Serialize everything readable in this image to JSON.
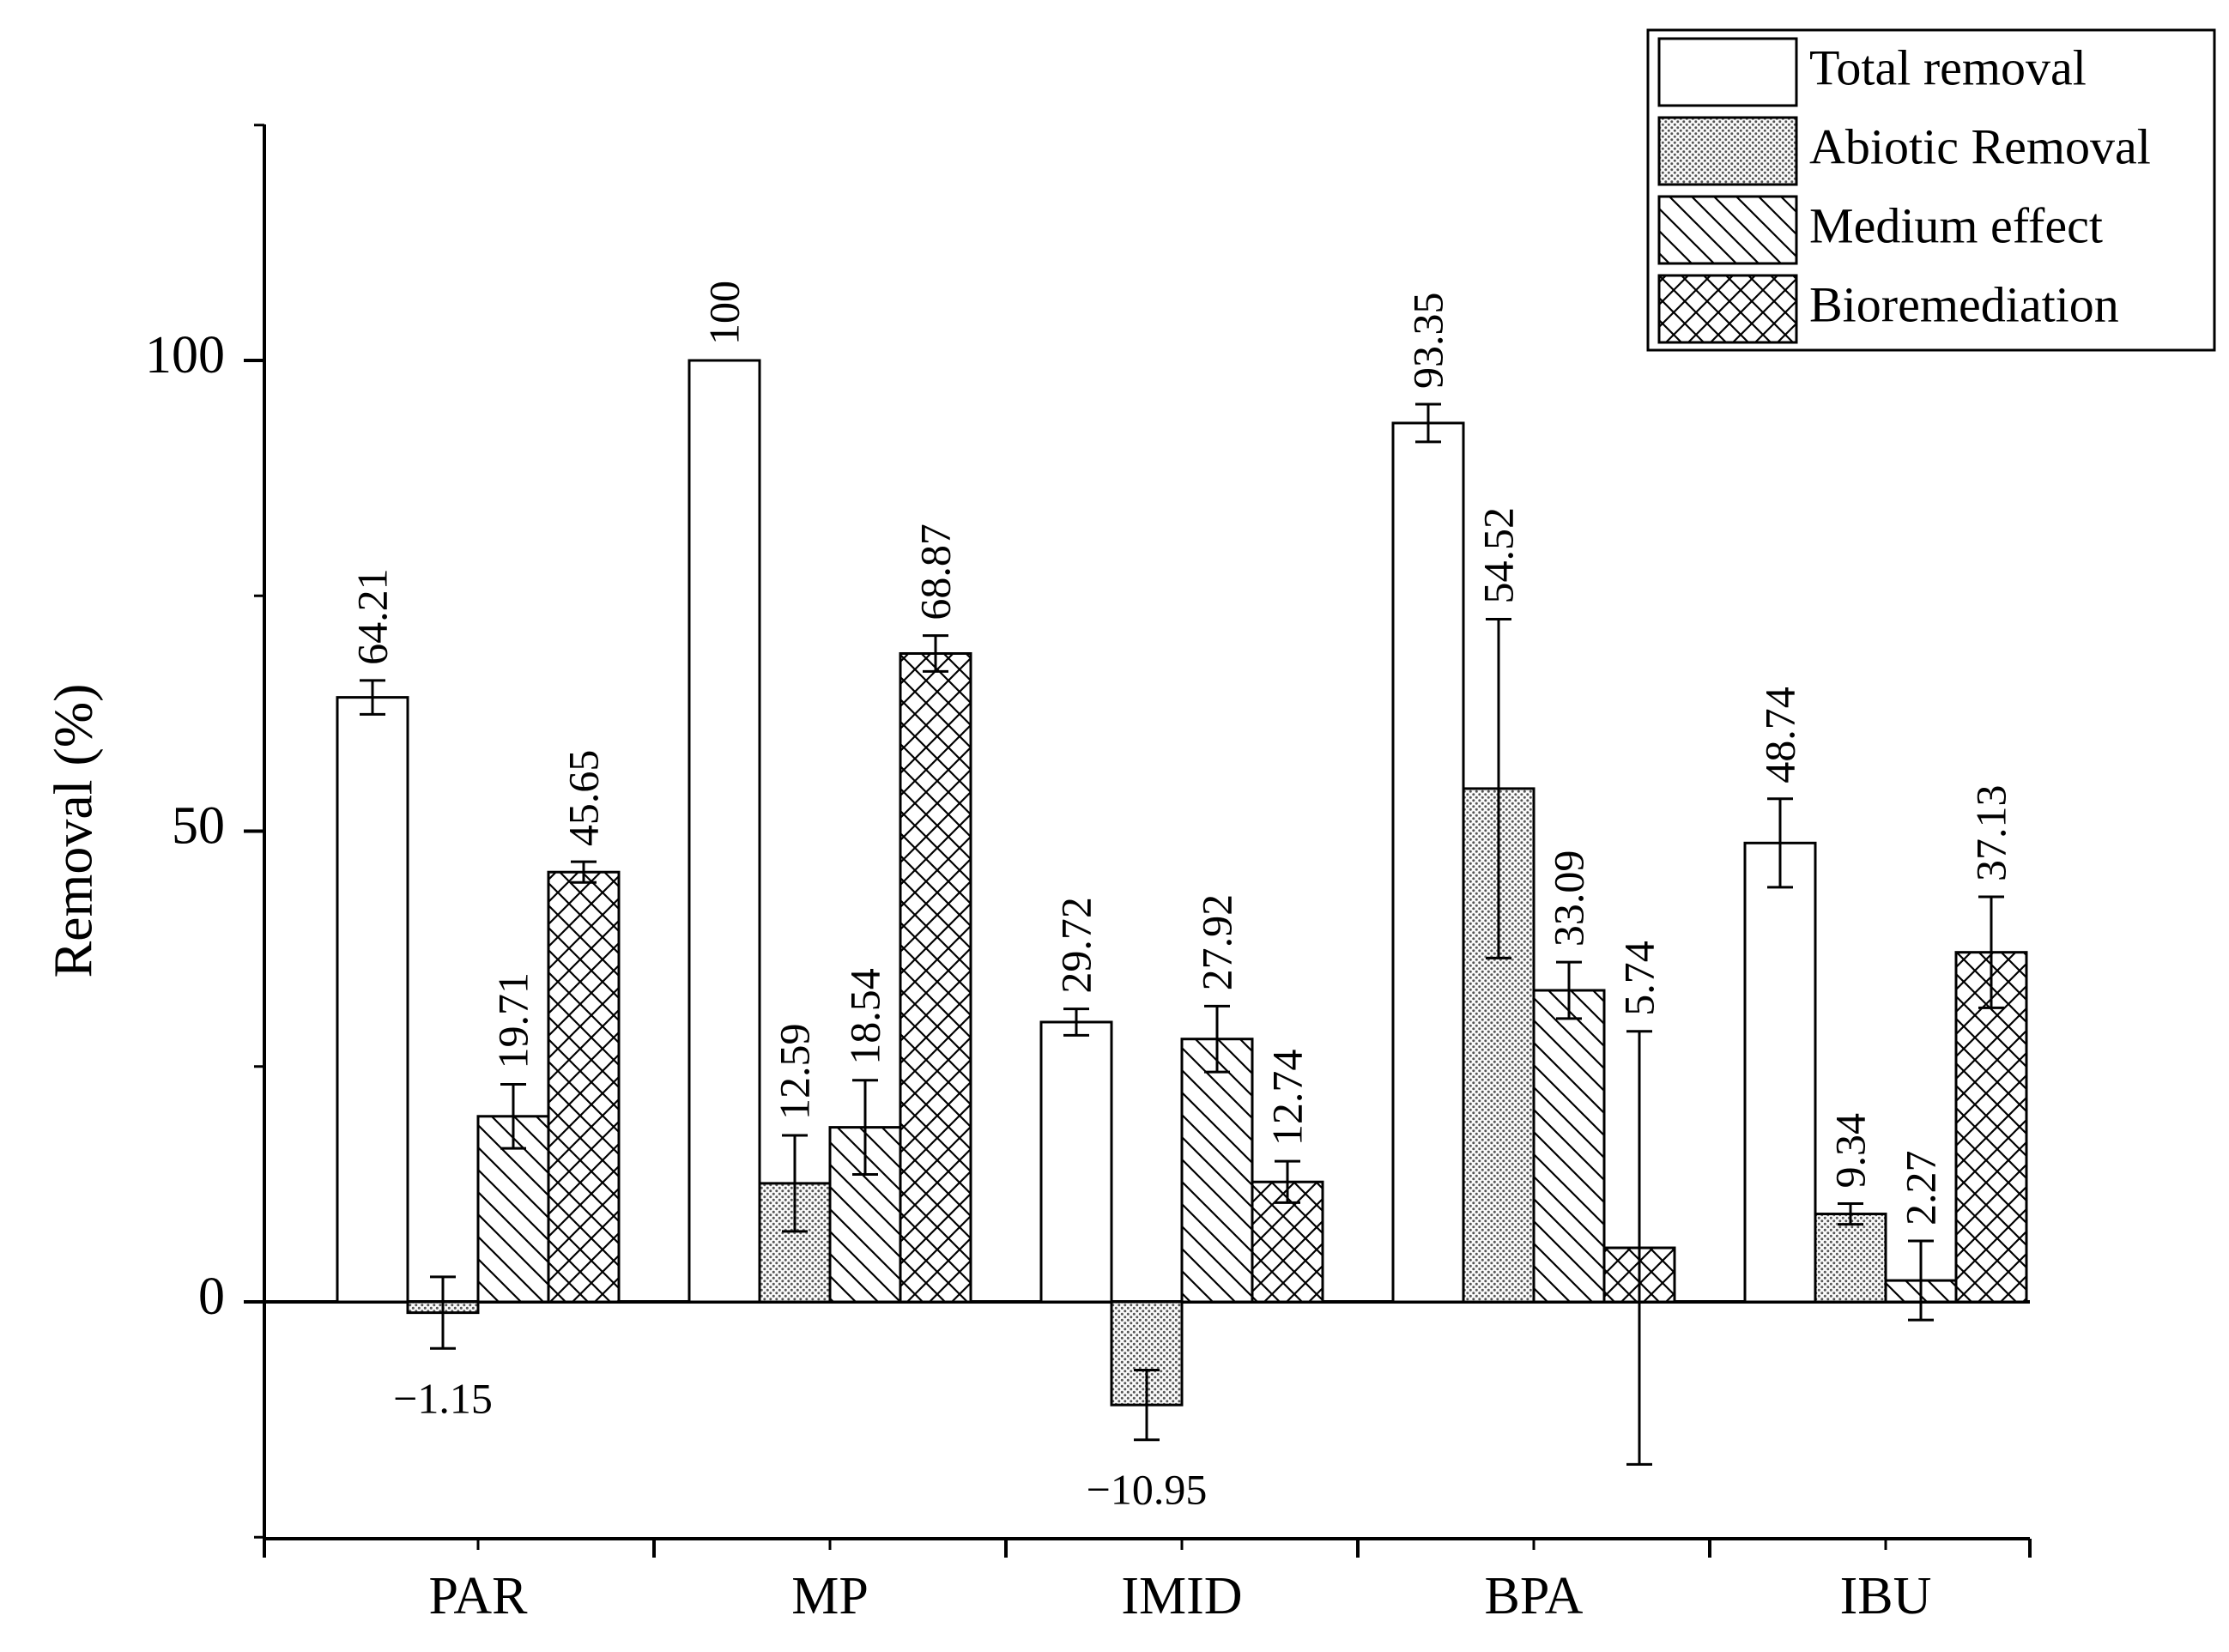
{
  "chart_data": {
    "type": "bar",
    "title": "",
    "xlabel": "",
    "ylabel": "Removal (%)",
    "ylim": [
      -25,
      125
    ],
    "yticks": [
      0,
      50,
      100
    ],
    "categories": [
      "PAR",
      "MP",
      "IMID",
      "BPA",
      "IBU"
    ],
    "series": [
      {
        "name": "Total removal",
        "pattern": "none",
        "values": [
          64.21,
          100,
          29.72,
          93.35,
          48.74
        ],
        "errors": [
          1.8,
          0,
          1.4,
          2.0,
          4.7
        ],
        "labels": [
          "64.21",
          "100",
          "29.72",
          "93.35",
          "48.74"
        ]
      },
      {
        "name": "Abiotic Removal",
        "pattern": "dots",
        "values": [
          -1.15,
          12.59,
          -10.95,
          54.52,
          9.34
        ],
        "errors": [
          3.8,
          5.1,
          3.7,
          18.0,
          1.1
        ],
        "labels": [
          "−1.15",
          "12.59",
          "−10.95",
          "54.52",
          "9.34"
        ]
      },
      {
        "name": "Medium effect",
        "pattern": "hatch",
        "values": [
          19.71,
          18.54,
          27.92,
          33.09,
          2.27
        ],
        "errors": [
          3.4,
          5.0,
          3.5,
          3.0,
          4.2
        ],
        "labels": [
          "19.71",
          "18.54",
          "27.92",
          "33.09",
          "2.27"
        ]
      },
      {
        "name": "Bioremediation",
        "pattern": "crosshatch",
        "values": [
          45.65,
          68.87,
          12.74,
          5.74,
          37.13
        ],
        "errors": [
          1.1,
          1.9,
          2.2,
          23.0,
          5.9
        ],
        "labels": [
          "45.65",
          "68.87",
          "12.74",
          "5.74",
          "37.13"
        ]
      }
    ],
    "legend_position": "top-right",
    "colors": {
      "bar_fill": "#ffffff",
      "stroke": "#000000",
      "pattern_ink": "#555555"
    }
  }
}
